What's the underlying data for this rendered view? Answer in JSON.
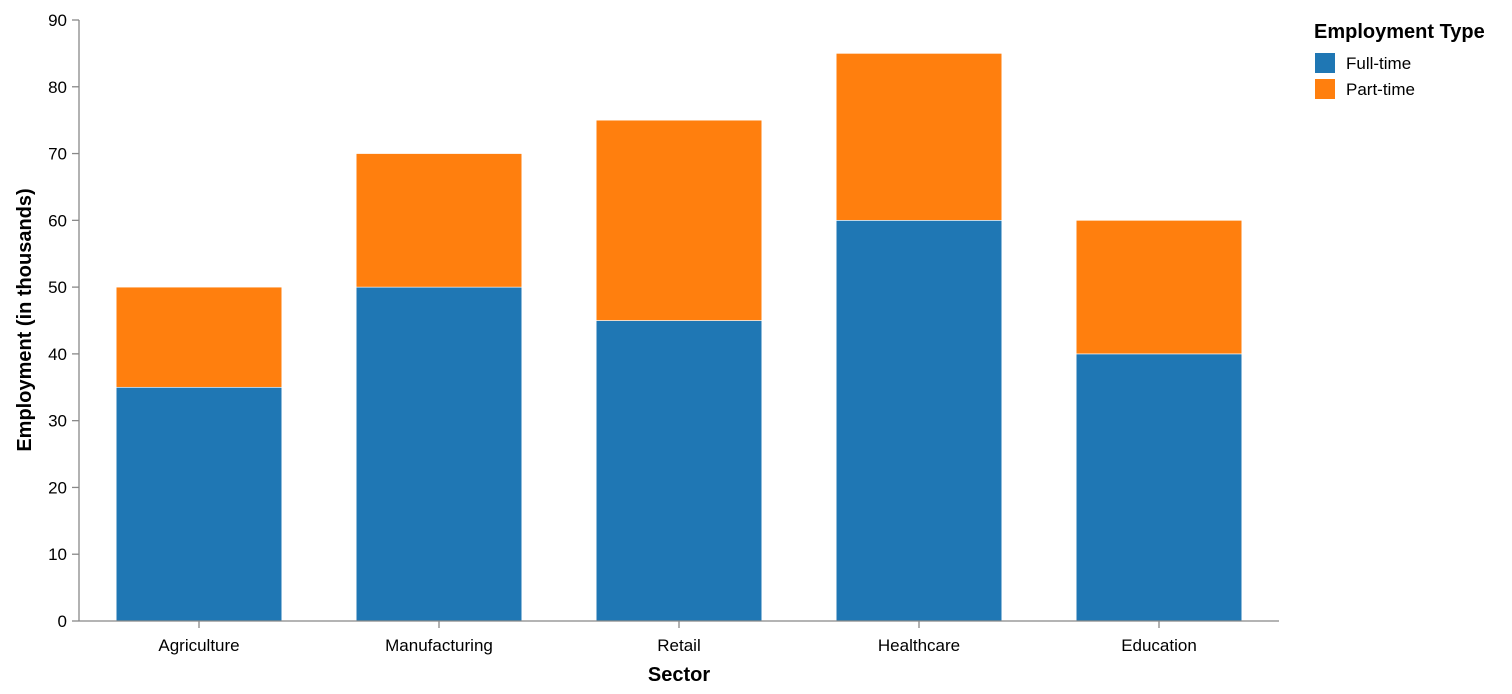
{
  "chart_data": {
    "type": "bar",
    "stacked": true,
    "title": "",
    "xlabel": "Sector",
    "ylabel": "Employment (in thousands)",
    "categories": [
      "Agriculture",
      "Manufacturing",
      "Retail",
      "Healthcare",
      "Education"
    ],
    "series": [
      {
        "name": "Full-time",
        "color": "#1f77b4",
        "values": [
          35,
          50,
          45,
          60,
          40
        ]
      },
      {
        "name": "Part-time",
        "color": "#ff7f0e",
        "values": [
          15,
          20,
          30,
          25,
          20
        ]
      }
    ],
    "ylim": [
      0,
      90
    ],
    "yticks": [
      0,
      10,
      20,
      30,
      40,
      50,
      60,
      70,
      80,
      90
    ],
    "grid": false,
    "legend": {
      "title": "Employment Type",
      "position": "top-right"
    }
  }
}
